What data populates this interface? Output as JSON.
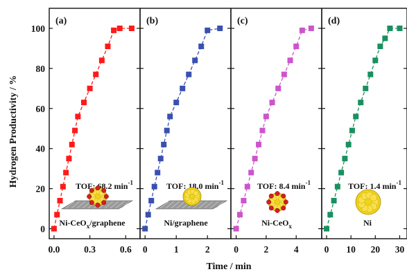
{
  "figure": {
    "ylabel": "Hydrogen Productivity / %",
    "xlabel": "Time / min"
  },
  "chart_data": [
    {
      "type": "line",
      "panel": "(a)",
      "tof": "TOF: 68.2 min",
      "tof_sup": "-1",
      "material": {
        "parts": [
          {
            "t": "Ni-CeO"
          },
          {
            "t": "x",
            "sub": true
          },
          {
            "t": "/graphene"
          }
        ]
      },
      "illustration": "ni-ceox-graphene-icon",
      "color": "#ff1a1a",
      "x": [
        0.0,
        0.025,
        0.05,
        0.075,
        0.1,
        0.125,
        0.15,
        0.175,
        0.2,
        0.25,
        0.3,
        0.35,
        0.4,
        0.45,
        0.5,
        0.55,
        0.65
      ],
      "y": [
        0,
        7,
        14,
        21,
        28,
        35,
        42,
        49,
        56,
        63,
        70,
        77,
        84,
        91,
        99,
        100,
        100
      ],
      "xlim": [
        -0.04,
        0.72
      ],
      "xticks": [
        0.0,
        0.3,
        0.6
      ],
      "xticklabels": [
        "0.0",
        "0.3",
        "0.6"
      ],
      "ylim": [
        -5,
        110
      ],
      "yticks": [
        0,
        20,
        40,
        60,
        80,
        100
      ],
      "yticklabels": [
        "0",
        "20",
        "40",
        "60",
        "80",
        "100"
      ]
    },
    {
      "type": "line",
      "panel": "(b)",
      "tof": "TOF: 18.0 min",
      "tof_sup": "-1",
      "material": {
        "parts": [
          {
            "t": "Ni/graphene"
          }
        ]
      },
      "illustration": "ni-graphene-icon",
      "color": "#3a50b0",
      "x": [
        0.0,
        0.1,
        0.2,
        0.3,
        0.4,
        0.5,
        0.6,
        0.7,
        0.8,
        1.0,
        1.2,
        1.4,
        1.6,
        1.8,
        2.0,
        2.4
      ],
      "y": [
        0,
        7,
        14,
        21,
        28,
        35,
        42,
        49,
        56,
        63,
        70,
        77,
        84,
        91,
        99,
        100
      ],
      "xlim": [
        -0.16,
        2.75
      ],
      "xticks": [
        0,
        1,
        2
      ],
      "xticklabels": [
        "0",
        "1",
        "2"
      ],
      "ylim": [
        -5,
        110
      ],
      "yticks": [
        0,
        20,
        40,
        60,
        80,
        100
      ],
      "yticklabels": []
    },
    {
      "type": "line",
      "panel": "(c)",
      "tof": "TOF: 8.4 min",
      "tof_sup": "-1",
      "material": {
        "parts": [
          {
            "t": "Ni-CeO"
          },
          {
            "t": "x",
            "sub": true
          }
        ]
      },
      "illustration": "ni-ceox-icon",
      "color": "#cc55cc",
      "x": [
        0.0,
        0.25,
        0.5,
        0.75,
        1.0,
        1.25,
        1.5,
        1.75,
        2.0,
        2.4,
        2.8,
        3.2,
        3.6,
        4.0,
        4.4,
        5.0
      ],
      "y": [
        0,
        7,
        14,
        21,
        28,
        35,
        42,
        49,
        56,
        63,
        70,
        77,
        84,
        91,
        99,
        100
      ],
      "xlim": [
        -0.35,
        5.7
      ],
      "xticks": [
        0,
        2,
        4
      ],
      "xticklabels": [
        "0",
        "2",
        "4"
      ],
      "ylim": [
        -5,
        110
      ],
      "yticks": [
        0,
        20,
        40,
        60,
        80,
        100
      ],
      "yticklabels": []
    },
    {
      "type": "line",
      "panel": "(d)",
      "tof": "TOF: 1.4 min",
      "tof_sup": "-1",
      "material": {
        "parts": [
          {
            "t": "Ni"
          }
        ]
      },
      "illustration": "ni-cluster-icon",
      "color": "#1a9060",
      "x": [
        0,
        1.5,
        3,
        4.5,
        6,
        7.5,
        9,
        10.5,
        12,
        14,
        16,
        18,
        20,
        22,
        24,
        26,
        30
      ],
      "y": [
        0,
        7,
        14,
        21,
        28,
        35,
        42,
        49,
        56,
        63,
        70,
        77,
        84,
        91,
        95,
        100,
        100
      ],
      "xlim": [
        -2,
        33
      ],
      "xticks": [
        0,
        10,
        20,
        30
      ],
      "xticklabels": [
        "0",
        "10",
        "20",
        "30"
      ],
      "ylim": [
        -5,
        110
      ],
      "yticks": [
        0,
        20,
        40,
        60,
        80,
        100
      ],
      "yticklabels": []
    }
  ]
}
